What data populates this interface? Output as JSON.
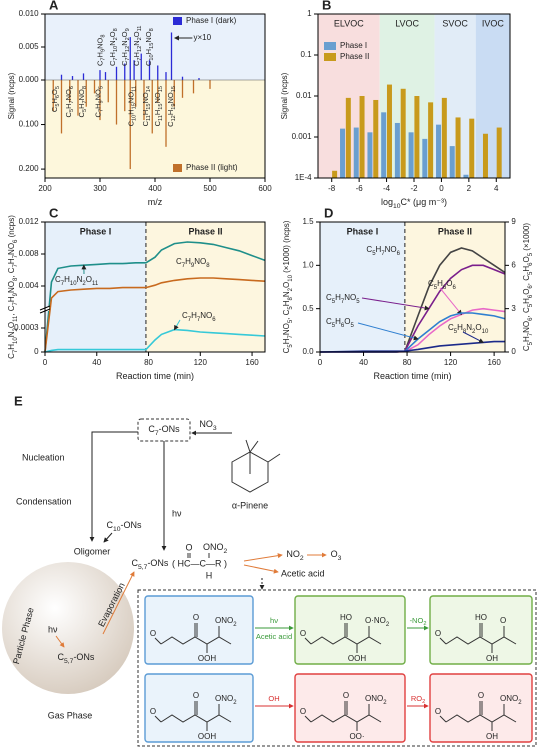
{
  "chart_data": [
    {
      "type": "stem",
      "panel": "A",
      "xlabel": "m/z",
      "ylabel": "Signal (ncps)",
      "xlim": [
        200,
        600
      ],
      "xticks": [
        200,
        300,
        400,
        500,
        600
      ],
      "ylim": [
        0,
        0.01
      ],
      "yticks": [
        {
          "value": 0,
          "label": "0.000"
        },
        {
          "value": 0.005,
          "label": "0.005"
        },
        {
          "value": 0.01,
          "label": "0.010"
        }
      ],
      "y2lim": [
        0,
        0.22
      ],
      "y2ticks": [
        {
          "value": 0.1,
          "label": "0.100"
        },
        {
          "value": 0.2,
          "label": "0.200"
        }
      ],
      "series": [
        {
          "name": "Phase I (dark)",
          "color": "#2b2bd6",
          "x": [
            230,
            250,
            270,
            300,
            310,
            330,
            345,
            355,
            362,
            375,
            390,
            405,
            420,
            430,
            450,
            480
          ],
          "values": [
            0.0008,
            0.0006,
            0.001,
            0.0015,
            0.0012,
            0.002,
            0.0025,
            0.0065,
            0.003,
            0.004,
            0.003,
            0.0022,
            0.0012,
            0.0072,
            0.0005,
            0.0003
          ]
        },
        {
          "name": "Phase II (light)",
          "color": "#c0702a",
          "axis": "y2",
          "x": [
            215,
            230,
            245,
            260,
            275,
            290,
            300,
            315,
            330,
            345,
            355,
            365,
            380,
            395,
            405,
            420,
            435,
            450,
            470,
            500
          ],
          "values": [
            0.07,
            0.12,
            0.05,
            0.08,
            0.06,
            0.03,
            0.09,
            0.05,
            0.1,
            0.07,
            0.2,
            0.06,
            0.09,
            0.12,
            0.05,
            0.15,
            0.06,
            0.04,
            0.03,
            0.02
          ]
        }
      ],
      "annotations": [
        "C7H9NO8",
        "C7H10N2O8",
        "C7H12N2O9",
        "C7H12N2O11",
        "C10H15NO8",
        "C5H6O5",
        "C5H7NO6",
        "C5H7NO8",
        "C7H9NO5",
        "C10H15NO11",
        "C11H15NO14",
        "C11H15NO15",
        "C12H19NO15",
        "y×10"
      ]
    },
    {
      "type": "bar",
      "panel": "B",
      "xlabel": "log10C* (μg m⁻³)",
      "ylabel": "Signal (ncps)",
      "x": [
        -8,
        -7,
        -6,
        -5,
        -4,
        -3,
        -2,
        -1,
        0,
        1,
        2,
        3,
        4
      ],
      "xlim": [
        -9,
        5
      ],
      "xticks": [
        -8,
        -6,
        -4,
        -2,
        0,
        2,
        4
      ],
      "ylim": [
        0.0001,
        1
      ],
      "log_y": true,
      "yticks": [
        {
          "value": 0.0001,
          "label": "1E-4"
        },
        0.001,
        0.01,
        0.1,
        1
      ],
      "regions": [
        {
          "name": "ELVOC",
          "from": -9,
          "to": -4.5,
          "color": "#f8dede"
        },
        {
          "name": "LVOC",
          "from": -4.5,
          "to": -0.5,
          "color": "#dff2e4"
        },
        {
          "name": "SVOC",
          "from": -0.5,
          "to": 2.5,
          "color": "#e1ecf7"
        },
        {
          "name": "IVOC",
          "from": 2.5,
          "to": 5,
          "color": "#c9dcf3"
        }
      ],
      "series": [
        {
          "name": "Phase I",
          "color": "#6a9fd0",
          "values": [
            null,
            0.0016,
            0.0017,
            0.0013,
            0.004,
            0.0022,
            0.0013,
            0.0009,
            0.002,
            0.0006,
            0.00012,
            null,
            null
          ]
        },
        {
          "name": "Phase II",
          "color": "#c89a1c",
          "values": [
            0.00015,
            0.009,
            0.01,
            0.008,
            0.019,
            0.015,
            0.01,
            0.007,
            0.009,
            0.003,
            0.0028,
            0.0012,
            0.0017
          ]
        }
      ]
    },
    {
      "type": "line",
      "panel": "C",
      "xlabel": "Reaction time (min)",
      "ylabel": "C7H10N2O11, C7H9NO8, C7H7NO6 (ncps)",
      "x": [
        0,
        5,
        10,
        20,
        30,
        40,
        50,
        60,
        70,
        78,
        85,
        90,
        100,
        110,
        120,
        130,
        140,
        150,
        160,
        170
      ],
      "xlim": [
        0,
        170
      ],
      "xticks": [
        0,
        40,
        80,
        120,
        160
      ],
      "ylim": [
        0,
        0.012
      ],
      "ybreak": [
        0.0005,
        0.0015
      ],
      "yticks": [
        0,
        0.0003,
        0.004,
        0.008,
        0.012
      ],
      "regions": [
        {
          "name": "Phase I",
          "from": 0,
          "to": 78,
          "color": "#e6f0fa"
        },
        {
          "name": "Phase II",
          "from": 78,
          "to": 170,
          "color": "#fdf6df"
        }
      ],
      "series": [
        {
          "name": "C7H10N2O11",
          "color": "#1f8f8a",
          "values": [
            0,
            0.0045,
            0.0062,
            0.0065,
            0.0066,
            0.0067,
            0.0068,
            0.0068,
            0.0069,
            0.0069,
            0.0076,
            0.0085,
            0.0093,
            0.0095,
            0.0094,
            0.0092,
            0.0088,
            0.0084,
            0.0078,
            0.0072
          ]
        },
        {
          "name": "C7H9NO8",
          "color": "#c86a1e",
          "values": [
            0,
            0.0025,
            0.0033,
            0.0035,
            0.0036,
            0.0037,
            0.0037,
            0.0038,
            0.0038,
            0.0038,
            0.0041,
            0.0044,
            0.0047,
            0.0049,
            0.005,
            0.005,
            0.0049,
            0.0048,
            0.0047,
            0.0046
          ]
        },
        {
          "name": "C7H7NO6",
          "color": "#36c9d8",
          "values": [
            0,
            2e-05,
            3e-05,
            3e-05,
            3e-05,
            3e-05,
            3e-05,
            3e-05,
            3e-05,
            3e-05,
            0.00015,
            0.00022,
            0.00028,
            0.00027,
            0.00025,
            0.00024,
            0.00023,
            0.00022,
            0.00021,
            0.0002
          ]
        }
      ]
    },
    {
      "type": "line",
      "panel": "D",
      "xlabel": "Reaction time (min)",
      "ylabel": "C5H7NO5, C5H8N2O10 (×1000) (ncps)",
      "y2label": "C5H7NO6, C5H6O6, C5H6O5 (×1000)",
      "x": [
        0,
        40,
        70,
        78,
        90,
        100,
        110,
        120,
        130,
        140,
        150,
        160,
        170
      ],
      "xlim": [
        0,
        170
      ],
      "xticks": [
        0,
        40,
        80,
        120,
        160
      ],
      "ylim": [
        0,
        1.5
      ],
      "yticks": [
        {
          "value": 0,
          "label": "0.0"
        },
        {
          "value": 0.5,
          "label": "0.5"
        },
        {
          "value": 1,
          "label": "1.0"
        },
        {
          "value": 1.5,
          "label": "1.5"
        }
      ],
      "y2lim": [
        0,
        9
      ],
      "y2ticks": [
        0,
        3,
        6,
        9
      ],
      "regions": [
        {
          "name": "Phase I",
          "from": 0,
          "to": 78,
          "color": "#e6f0fa"
        },
        {
          "name": "Phase II",
          "from": 78,
          "to": 170,
          "color": "#fdf6df"
        }
      ],
      "series": [
        {
          "name": "C5H7NO6",
          "color": "#444444",
          "axis": "y2",
          "values": [
            0,
            0,
            0,
            0.05,
            2.5,
            4.5,
            6,
            6.9,
            7.2,
            7,
            6.5,
            6,
            5.5
          ]
        },
        {
          "name": "C5H7NO5",
          "color": "#7a1f8c",
          "values": [
            0,
            0,
            0,
            0.01,
            0.3,
            0.5,
            0.7,
            0.85,
            0.95,
            1,
            1,
            0.95,
            0.9
          ]
        },
        {
          "name": "C5H6O6",
          "color": "#e868c8",
          "axis": "y2",
          "values": [
            0,
            0,
            0,
            0.02,
            0.5,
            1.2,
            1.8,
            2.3,
            2.6,
            2.9,
            3,
            2.9,
            2.8
          ]
        },
        {
          "name": "C5H6O5",
          "color": "#2f7fd0",
          "axis": "y2",
          "values": [
            0,
            0,
            0,
            0.05,
            0.9,
            1.5,
            2.1,
            2.5,
            2.7,
            2.7,
            2.6,
            2.5,
            2.3
          ]
        },
        {
          "name": "C5H8N2O10",
          "color": "#1c2a8a",
          "values": [
            0,
            0.01,
            0.01,
            0.01,
            0.03,
            0.05,
            0.07,
            0.08,
            0.09,
            0.1,
            0.11,
            0.12,
            0.12
          ]
        }
      ]
    }
  ],
  "diagram": {
    "panel": "E",
    "c7": "C7-ONs",
    "no3": "NO3",
    "pinene": "α-Pinene",
    "nucleation": "Nucleation",
    "condensation": "Condensation",
    "c10": "C10-ONs",
    "hv_gas": "hν",
    "oligomer": "Oligomer",
    "c57": "C5,7-ONs",
    "formula": "( HC—C—R )",
    "formula_o": "O",
    "formula_ono2": "ONO2",
    "formula_h": "H",
    "no2": "NO2",
    "o3": "O3",
    "acetic": "Acetic acid",
    "particle": "Particle Phase",
    "hv_particle": "hν",
    "c57_particle": "C5,7-ONs",
    "evaporation": "Evaporation",
    "gas": "Gas Phase",
    "boxes": [
      [
        "O",
        "ONO2",
        "O",
        "OOH"
      ],
      [
        "HO",
        "O·NO2",
        "O",
        "OOH"
      ],
      [
        "HO",
        "O",
        "O",
        "OH"
      ],
      [
        "O",
        "ONO2",
        "O",
        "OOH"
      ],
      [
        "O",
        "ONO2",
        "O",
        "OO·"
      ],
      [
        "O",
        "ONO2",
        "O",
        "OH"
      ]
    ],
    "arrows": [
      "hν",
      "Acetic acid",
      "-NO2",
      "OH",
      "RO2"
    ]
  }
}
